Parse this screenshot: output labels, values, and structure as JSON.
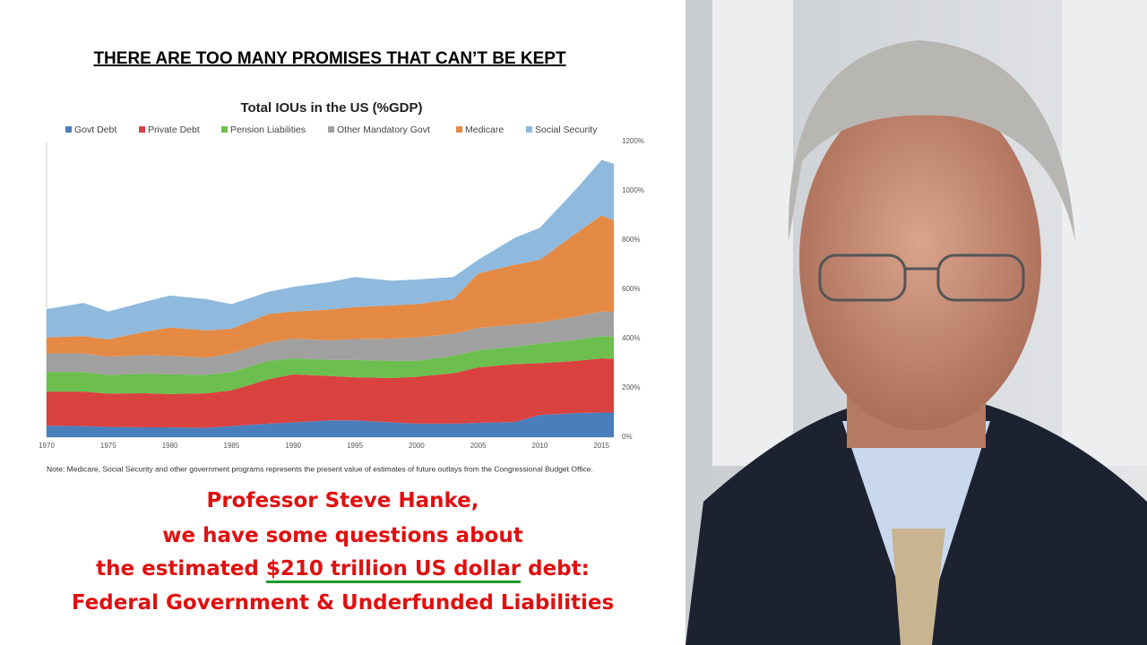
{
  "header": {
    "title": "THERE ARE TOO MANY PROMISES THAT CAN’T BE KEPT"
  },
  "chart_data": {
    "type": "stacked-area",
    "title": "Total IOUs in the US (%GDP)",
    "x": [
      1970,
      1973,
      1975,
      1978,
      1980,
      1983,
      1985,
      1988,
      1990,
      1993,
      1995,
      1998,
      2000,
      2003,
      2005,
      2008,
      2010,
      2013,
      2015,
      2016
    ],
    "xlim": [
      1970,
      2016
    ],
    "xticks": [
      1970,
      1975,
      1980,
      1985,
      1990,
      1995,
      2000,
      2005,
      2010,
      2015
    ],
    "ylim": [
      0,
      1200
    ],
    "yticks": [
      {
        "value": 0,
        "label": "0%"
      },
      {
        "value": 200,
        "label": "200%"
      },
      {
        "value": 400,
        "label": "400%"
      },
      {
        "value": 600,
        "label": "600%"
      },
      {
        "value": 800,
        "label": "800%"
      },
      {
        "value": 1000,
        "label": "1000%"
      },
      {
        "value": 1200,
        "label": "1200%"
      }
    ],
    "series": [
      {
        "name": "Govt Debt",
        "color": "#4a7ebb",
        "values": [
          47,
          45,
          42,
          40,
          40,
          38,
          45,
          55,
          60,
          68,
          68,
          60,
          55,
          55,
          58,
          62,
          90,
          98,
          100,
          100
        ]
      },
      {
        "name": "Private Debt",
        "color": "#d9423f",
        "values": [
          138,
          140,
          135,
          138,
          135,
          140,
          145,
          180,
          195,
          180,
          175,
          180,
          190,
          205,
          225,
          235,
          210,
          212,
          220,
          218
        ]
      },
      {
        "name": "Pension Liabilities",
        "color": "#6cbf4e",
        "values": [
          80,
          80,
          75,
          80,
          80,
          75,
          75,
          75,
          65,
          65,
          70,
          70,
          65,
          70,
          70,
          70,
          80,
          85,
          90,
          90
        ]
      },
      {
        "name": "Other Mandatory Govt",
        "color": "#a0a0a0",
        "values": [
          75,
          75,
          75,
          75,
          75,
          70,
          75,
          75,
          80,
          80,
          85,
          90,
          95,
          90,
          90,
          90,
          85,
          95,
          100,
          100
        ]
      },
      {
        "name": "Medicare",
        "color": "#e48a45",
        "values": [
          65,
          70,
          70,
          95,
          115,
          110,
          100,
          115,
          110,
          125,
          130,
          135,
          135,
          140,
          222,
          243,
          255,
          340,
          390,
          372
        ]
      },
      {
        "name": "Social Security",
        "color": "#8fb9dd",
        "values": [
          115,
          135,
          113,
          122,
          130,
          127,
          100,
          90,
          100,
          112,
          122,
          100,
          100,
          90,
          55,
          110,
          130,
          180,
          225,
          230
        ]
      }
    ],
    "note": "Note: Medicare, Social Security and other government programs represents the present value of estimates of future outlays from the Congressional Budget Office."
  },
  "caption": {
    "line1": "Professor Steve Hanke,",
    "line2": "we have some questions about",
    "line3_start": "the estimated",
    "line3_highlight": "$210 trillion US dollar",
    "line3_end": "debt:",
    "line4": "Federal Government & Underfunded Liabilities"
  }
}
